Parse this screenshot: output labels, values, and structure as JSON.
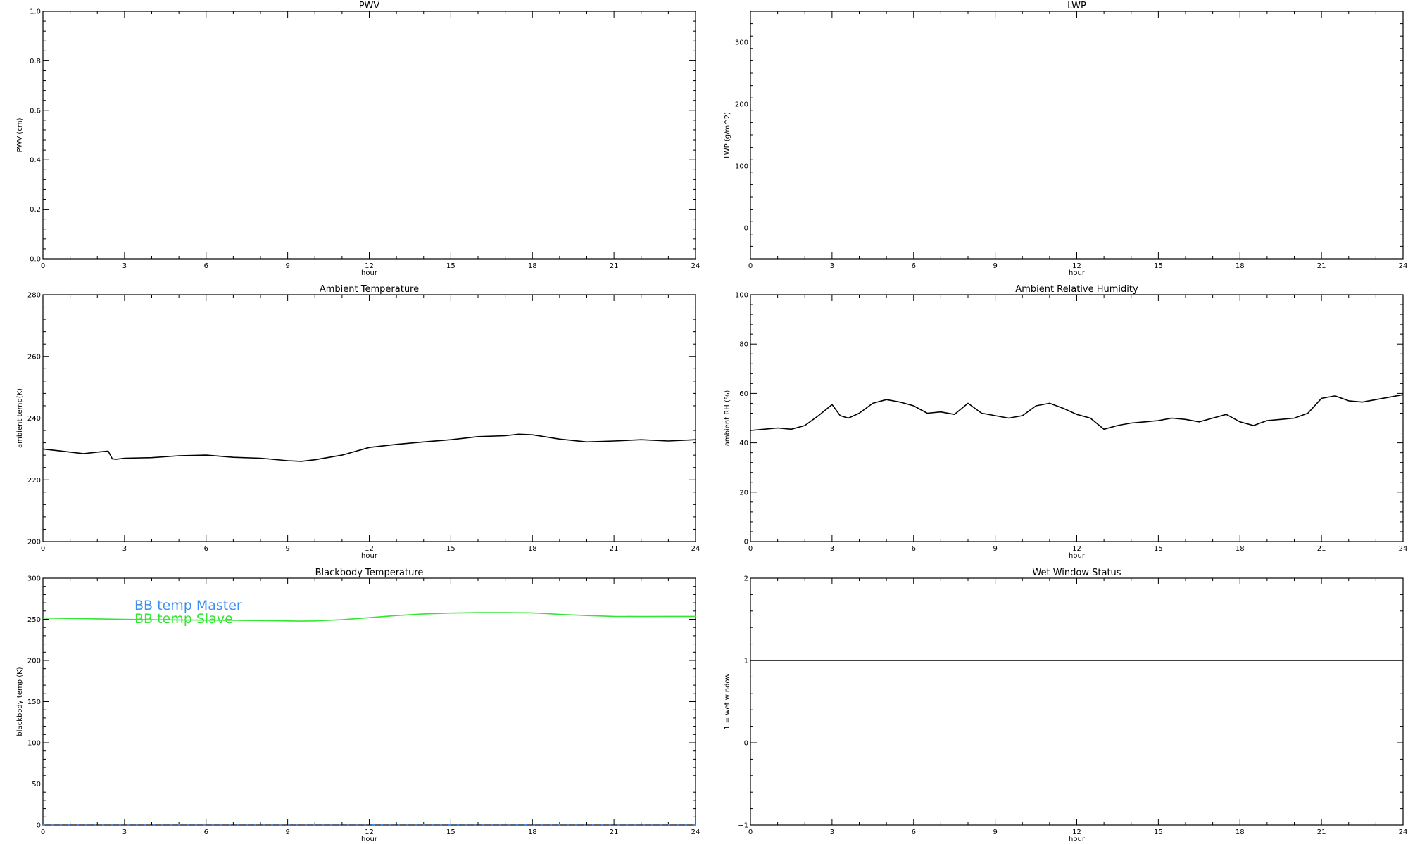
{
  "chart_data": [
    {
      "type": "line",
      "title": "PWV",
      "xlabel": "hour",
      "ylabel": "PWV (cm)",
      "xlim": [
        0,
        24
      ],
      "ylim": [
        0,
        1
      ],
      "xticks": [
        0,
        3,
        6,
        9,
        12,
        15,
        18,
        21,
        24
      ],
      "yticks": [
        "0.0",
        "0.2",
        "0.4",
        "0.6",
        "0.8",
        "1.0"
      ],
      "series": []
    },
    {
      "type": "line",
      "title": "LWP",
      "xlabel": "hour",
      "ylabel": "LWP (g/m^2)",
      "xlim": [
        0,
        24
      ],
      "ylim": [
        -50,
        350
      ],
      "xticks": [
        0,
        3,
        6,
        9,
        12,
        15,
        18,
        21,
        24
      ],
      "yticks": [
        "0",
        "100",
        "200",
        "300"
      ],
      "series": []
    },
    {
      "type": "line",
      "title": "Ambient Temperature",
      "xlabel": "hour",
      "ylabel": "ambient temp(K)",
      "xlim": [
        0,
        24
      ],
      "ylim": [
        200,
        280
      ],
      "xticks": [
        0,
        3,
        6,
        9,
        12,
        15,
        18,
        21,
        24
      ],
      "yticks": [
        "200",
        "220",
        "240",
        "260",
        "280"
      ],
      "series": [
        {
          "color": "#000000",
          "x": [
            0,
            0.5,
            1,
            1.5,
            2,
            2.4,
            2.55,
            2.7,
            3,
            4,
            5,
            6,
            7,
            8,
            9,
            9.5,
            10,
            11,
            12,
            13,
            14,
            15,
            16,
            17,
            17.5,
            18,
            19,
            20,
            21,
            22,
            23,
            24
          ],
          "y": [
            230,
            229.5,
            229,
            228.5,
            229,
            229.3,
            226.8,
            226.7,
            227,
            227.2,
            227.8,
            228,
            227.3,
            227,
            226.2,
            226,
            226.5,
            228,
            230.5,
            231.5,
            232.3,
            233,
            234,
            234.3,
            234.8,
            234.6,
            233.2,
            232.3,
            232.6,
            233,
            232.6,
            233
          ]
        }
      ]
    },
    {
      "type": "line",
      "title": "Ambient Relative Humidity",
      "xlabel": "hour",
      "ylabel": "ambient RH (%)",
      "xlim": [
        0,
        24
      ],
      "ylim": [
        0,
        100
      ],
      "xticks": [
        0,
        3,
        6,
        9,
        12,
        15,
        18,
        21,
        24
      ],
      "yticks": [
        "0",
        "20",
        "40",
        "60",
        "80",
        "100"
      ],
      "series": [
        {
          "color": "#000000",
          "x": [
            0,
            0.5,
            1,
            1.5,
            2,
            2.5,
            3,
            3.3,
            3.6,
            4,
            4.5,
            5,
            5.5,
            6,
            6.5,
            7,
            7.5,
            8,
            8.5,
            9,
            9.5,
            10,
            10.5,
            11,
            11.5,
            12,
            12.5,
            13,
            13.5,
            14,
            14.5,
            15,
            15.5,
            16,
            16.5,
            17,
            17.5,
            18,
            18.5,
            19,
            19.5,
            20,
            20.5,
            21,
            21.5,
            22,
            22.5,
            23,
            23.5,
            24
          ],
          "y": [
            45,
            45.5,
            46,
            45.5,
            47,
            51,
            55.5,
            51,
            50,
            52,
            56,
            57.5,
            56.5,
            55,
            52,
            52.5,
            51.5,
            56,
            52,
            51,
            50,
            51,
            55,
            56,
            54,
            51.5,
            50,
            45.5,
            47,
            48,
            48.5,
            49,
            50,
            49.5,
            48.5,
            50,
            51.5,
            48.5,
            47,
            49,
            49.5,
            50,
            52,
            58,
            59,
            57,
            56.5,
            57.5,
            58.5,
            59.5
          ]
        }
      ]
    },
    {
      "type": "line",
      "title": "Blackbody Temperature",
      "xlabel": "hour",
      "ylabel": "blackbody temp (K)",
      "xlim": [
        0,
        24
      ],
      "ylim": [
        0,
        300
      ],
      "xticks": [
        0,
        3,
        6,
        9,
        12,
        15,
        18,
        21,
        24
      ],
      "yticks": [
        "0",
        "50",
        "100",
        "150",
        "200",
        "250",
        "300"
      ],
      "legend_position": "top-left",
      "series": [
        {
          "name": "BB temp Master",
          "color": "#3b8ff2",
          "x": [
            0,
            24
          ],
          "y": [
            0,
            0
          ]
        },
        {
          "name": "BB temp Slave",
          "color": "#33e633",
          "x": [
            0,
            1,
            2,
            3,
            4,
            5,
            6,
            7,
            8,
            9,
            9.5,
            10,
            11,
            12,
            13,
            14,
            15,
            16,
            17,
            18,
            19,
            20,
            21,
            22,
            23,
            24
          ],
          "y": [
            251.5,
            251,
            250.5,
            250,
            249.5,
            249.2,
            249,
            248.8,
            248.5,
            248,
            247.8,
            248,
            249.5,
            252,
            254.5,
            256.5,
            257.5,
            258,
            258,
            257.8,
            256,
            254.5,
            253.5,
            253.3,
            253.5,
            253.5
          ]
        }
      ]
    },
    {
      "type": "line",
      "title": "Wet Window Status",
      "xlabel": "hour",
      "ylabel": "1 = wet window",
      "xlim": [
        0,
        24
      ],
      "ylim": [
        -1,
        2
      ],
      "xticks": [
        0,
        3,
        6,
        9,
        12,
        15,
        18,
        21,
        24
      ],
      "yticks": [
        "−1",
        "0",
        "1",
        "2"
      ],
      "series": [
        {
          "color": "#000000",
          "x": [
            0,
            24
          ],
          "y": [
            1,
            1
          ]
        }
      ]
    }
  ]
}
